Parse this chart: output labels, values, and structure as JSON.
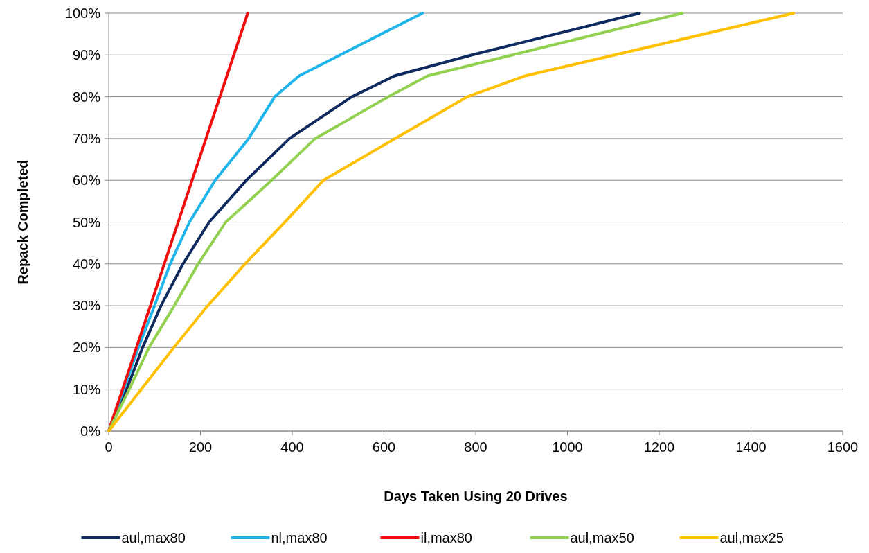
{
  "chart_data": {
    "type": "line",
    "xlabel": "Days Taken Using 20 Drives",
    "ylabel": "Repack Completed",
    "xlim": [
      0,
      1600
    ],
    "xticks": [
      0,
      200,
      400,
      600,
      800,
      1000,
      1200,
      1400,
      1600
    ],
    "ylim": [
      0,
      100
    ],
    "yticks": [
      {
        "value": 0,
        "label": "0%"
      },
      {
        "value": 10,
        "label": "10%"
      },
      {
        "value": 20,
        "label": "20%"
      },
      {
        "value": 30,
        "label": "30%"
      },
      {
        "value": 40,
        "label": "40%"
      },
      {
        "value": 50,
        "label": "50%"
      },
      {
        "value": 60,
        "label": "60%"
      },
      {
        "value": 70,
        "label": "70%"
      },
      {
        "value": 80,
        "label": "80%"
      },
      {
        "value": 90,
        "label": "90%"
      },
      {
        "value": 100,
        "label": "100%"
      }
    ],
    "grid": "y",
    "legend": "bottom",
    "marker": "none",
    "line_style": "solid",
    "series": [
      {
        "name": "aul,max80",
        "color": "#0e2a5e",
        "x": [
          0,
          39,
          74,
          114,
          162,
          219,
          300,
          394,
          530,
          623,
          792,
          1157
        ],
        "values": [
          0,
          10,
          20,
          30,
          40,
          50,
          60,
          70,
          80,
          85,
          90,
          100
        ]
      },
      {
        "name": "nl,max80",
        "color": "#1fb5ea",
        "x": [
          0,
          33,
          65,
          100,
          134,
          176,
          232,
          305,
          362,
          415,
          684
        ],
        "values": [
          0,
          10,
          20,
          30,
          40,
          50,
          60,
          70,
          80,
          85,
          100
        ]
      },
      {
        "name": "il,max80",
        "color": "#f20d0d",
        "x": [
          0,
          303
        ],
        "values": [
          0,
          100
        ]
      },
      {
        "name": "aul,max50",
        "color": "#92d050",
        "x": [
          0,
          45,
          88,
          143,
          195,
          255,
          355,
          450,
          610,
          695,
          1250
        ],
        "values": [
          0,
          10,
          20,
          30,
          40,
          50,
          60,
          70,
          80,
          85,
          100
        ]
      },
      {
        "name": "aul,max25",
        "color": "#ffc000",
        "x": [
          0,
          71,
          142,
          216,
          297,
          384,
          468,
          624,
          782,
          908,
          1493
        ],
        "values": [
          0,
          10,
          20,
          30,
          40,
          50,
          60,
          70,
          80,
          85,
          100
        ]
      }
    ]
  }
}
